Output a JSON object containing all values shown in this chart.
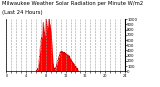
{
  "title_line1": "Milwaukee Weather Solar Radiation per Minute W/m2",
  "title_line2": "(Last 24 Hours)",
  "bg_color": "#ffffff",
  "fill_color": "#ff0000",
  "line_color": "#cc0000",
  "grid_color": "#999999",
  "ylim": [
    0,
    1000
  ],
  "yticks": [
    0,
    100,
    200,
    300,
    400,
    500,
    600,
    700,
    800,
    900,
    1000
  ],
  "num_points": 1440,
  "title_fontsize": 3.8,
  "tick_fontsize": 2.8,
  "xtick_fontsize": 2.5
}
